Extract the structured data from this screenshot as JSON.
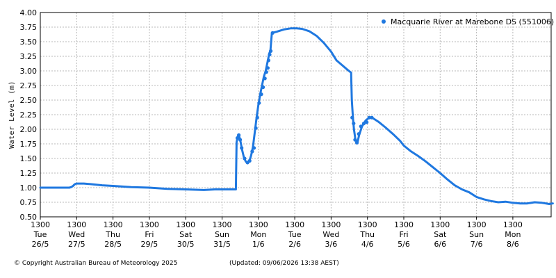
{
  "chart_data": {
    "type": "line",
    "title": "",
    "ylabel": "Water Level (m)",
    "xlabel": "",
    "ylim": [
      0.5,
      4.0
    ],
    "yticks": [
      "0.50",
      "0.75",
      "1.00",
      "1.25",
      "1.50",
      "1.75",
      "2.00",
      "2.25",
      "2.50",
      "2.75",
      "3.00",
      "3.25",
      "3.50",
      "3.75",
      "4.00"
    ],
    "x_range_days": [
      0,
      14.1
    ],
    "xticks": [
      {
        "time": "1300",
        "day": "Tue",
        "date": "26/5"
      },
      {
        "time": "1300",
        "day": "Wed",
        "date": "27/5"
      },
      {
        "time": "1300",
        "day": "Thu",
        "date": "28/5"
      },
      {
        "time": "1300",
        "day": "Fri",
        "date": "29/5"
      },
      {
        "time": "1300",
        "day": "Sat",
        "date": "30/5"
      },
      {
        "time": "1300",
        "day": "Sun",
        "date": "31/5"
      },
      {
        "time": "1300",
        "day": "Mon",
        "date": "1/6"
      },
      {
        "time": "1300",
        "day": "Tue",
        "date": "2/6"
      },
      {
        "time": "1300",
        "day": "Wed",
        "date": "3/6"
      },
      {
        "time": "1300",
        "day": "Thu",
        "date": "4/6"
      },
      {
        "time": "1300",
        "day": "Fri",
        "date": "5/6"
      },
      {
        "time": "1300",
        "day": "Sat",
        "date": "6/6"
      },
      {
        "time": "1300",
        "day": "Sun",
        "date": "7/6"
      },
      {
        "time": "1300",
        "day": "Mon",
        "date": "8/6"
      }
    ],
    "grid": true,
    "legend_position": "top-right",
    "series": [
      {
        "name": "Macquarie River at Marebone DS (551006)",
        "color": "#1f78e0",
        "points": [
          [
            0.0,
            1.0
          ],
          [
            0.5,
            1.0
          ],
          [
            0.8,
            1.0
          ],
          [
            0.85,
            1.01
          ],
          [
            0.9,
            1.03
          ],
          [
            0.95,
            1.06
          ],
          [
            1.0,
            1.07
          ],
          [
            1.2,
            1.07
          ],
          [
            1.4,
            1.06
          ],
          [
            1.7,
            1.04
          ],
          [
            2.0,
            1.03
          ],
          [
            2.5,
            1.01
          ],
          [
            3.0,
            1.0
          ],
          [
            3.5,
            0.98
          ],
          [
            4.0,
            0.97
          ],
          [
            4.5,
            0.96
          ],
          [
            4.8,
            0.97
          ],
          [
            5.2,
            0.97
          ],
          [
            5.38,
            0.97
          ],
          [
            5.4,
            1.78
          ],
          [
            5.43,
            1.87
          ],
          [
            5.46,
            1.9
          ],
          [
            5.5,
            1.82
          ],
          [
            5.55,
            1.65
          ],
          [
            5.6,
            1.52
          ],
          [
            5.65,
            1.45
          ],
          [
            5.7,
            1.42
          ],
          [
            5.75,
            1.45
          ],
          [
            5.8,
            1.55
          ],
          [
            5.85,
            1.7
          ],
          [
            5.9,
            1.95
          ],
          [
            5.95,
            2.2
          ],
          [
            6.0,
            2.42
          ],
          [
            6.05,
            2.6
          ],
          [
            6.1,
            2.75
          ],
          [
            6.15,
            2.9
          ],
          [
            6.2,
            3.0
          ],
          [
            6.25,
            3.15
          ],
          [
            6.3,
            3.3
          ],
          [
            6.33,
            3.35
          ],
          [
            6.37,
            3.65
          ],
          [
            6.5,
            3.67
          ],
          [
            6.7,
            3.71
          ],
          [
            6.9,
            3.73
          ],
          [
            7.05,
            3.73
          ],
          [
            7.2,
            3.72
          ],
          [
            7.4,
            3.68
          ],
          [
            7.6,
            3.6
          ],
          [
            7.8,
            3.48
          ],
          [
            8.0,
            3.33
          ],
          [
            8.15,
            3.18
          ],
          [
            8.3,
            3.1
          ],
          [
            8.45,
            3.02
          ],
          [
            8.55,
            2.97
          ],
          [
            8.57,
            2.5
          ],
          [
            8.6,
            2.2
          ],
          [
            8.63,
            2.0
          ],
          [
            8.67,
            1.82
          ],
          [
            8.72,
            1.76
          ],
          [
            8.77,
            1.9
          ],
          [
            8.85,
            2.05
          ],
          [
            8.95,
            2.15
          ],
          [
            9.05,
            2.2
          ],
          [
            9.15,
            2.19
          ],
          [
            9.3,
            2.13
          ],
          [
            9.5,
            2.03
          ],
          [
            9.7,
            1.92
          ],
          [
            9.9,
            1.8
          ],
          [
            10.0,
            1.72
          ],
          [
            10.2,
            1.62
          ],
          [
            10.4,
            1.54
          ],
          [
            10.6,
            1.45
          ],
          [
            10.8,
            1.35
          ],
          [
            11.0,
            1.25
          ],
          [
            11.2,
            1.14
          ],
          [
            11.4,
            1.04
          ],
          [
            11.6,
            0.97
          ],
          [
            11.8,
            0.92
          ],
          [
            12.0,
            0.84
          ],
          [
            12.2,
            0.8
          ],
          [
            12.4,
            0.77
          ],
          [
            12.6,
            0.75
          ],
          [
            12.8,
            0.76
          ],
          [
            13.0,
            0.74
          ],
          [
            13.2,
            0.73
          ],
          [
            13.4,
            0.73
          ],
          [
            13.6,
            0.75
          ],
          [
            13.8,
            0.74
          ],
          [
            14.0,
            0.72
          ],
          [
            14.1,
            0.73
          ]
        ],
        "markers": [
          [
            5.42,
            1.85
          ],
          [
            5.46,
            1.9
          ],
          [
            5.5,
            1.82
          ],
          [
            5.54,
            1.68
          ],
          [
            5.62,
            1.5
          ],
          [
            5.7,
            1.43
          ],
          [
            5.76,
            1.46
          ],
          [
            5.83,
            1.62
          ],
          [
            5.88,
            1.68
          ],
          [
            5.93,
            2.02
          ],
          [
            5.97,
            2.2
          ],
          [
            6.02,
            2.45
          ],
          [
            6.08,
            2.6
          ],
          [
            6.13,
            2.72
          ],
          [
            6.18,
            2.87
          ],
          [
            6.22,
            2.98
          ],
          [
            6.26,
            3.05
          ],
          [
            6.28,
            3.18
          ],
          [
            6.31,
            3.28
          ],
          [
            6.34,
            3.34
          ],
          [
            6.39,
            3.65
          ],
          [
            8.58,
            2.2
          ],
          [
            8.62,
            2.1
          ],
          [
            8.66,
            1.82
          ],
          [
            8.71,
            1.77
          ],
          [
            8.76,
            1.92
          ],
          [
            8.82,
            2.05
          ],
          [
            8.9,
            2.1
          ],
          [
            8.98,
            2.12
          ],
          [
            9.05,
            2.2
          ],
          [
            9.12,
            2.2
          ]
        ]
      }
    ]
  },
  "footer": {
    "copyright": "© Copyright Australian Bureau of Meteorology 2025",
    "updated": "(Updated: 09/06/2026 13:38 AEST)"
  }
}
